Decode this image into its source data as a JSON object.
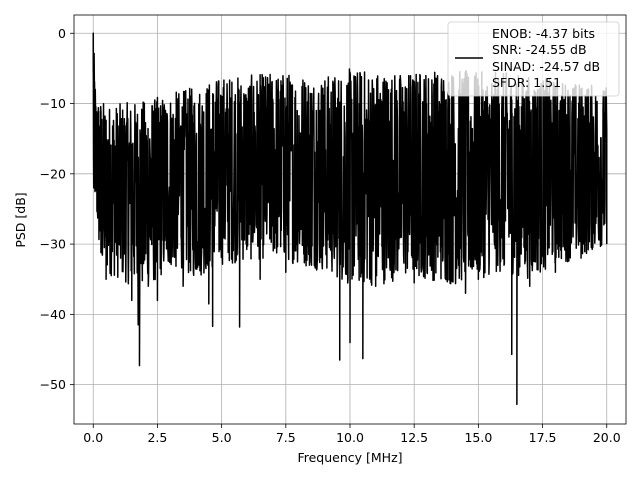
{
  "chart_data": {
    "type": "line",
    "xlabel": "Frequency [MHz]",
    "ylabel": "PSD [dB]",
    "xlim": [
      -0.75,
      20.75
    ],
    "ylim": [
      -55.6,
      2.6
    ],
    "xticks": [
      0.0,
      2.5,
      5.0,
      7.5,
      10.0,
      12.5,
      15.0,
      17.5,
      20.0
    ],
    "xtick_labels": [
      "0.0",
      "2.5",
      "5.0",
      "7.5",
      "10.0",
      "12.5",
      "15.0",
      "17.5",
      "20.0"
    ],
    "yticks": [
      0,
      -10,
      -20,
      -30,
      -40,
      -50
    ],
    "ytick_labels": [
      "0",
      "−10",
      "−20",
      "−30",
      "−40",
      "−50"
    ],
    "grid": true,
    "legend": {
      "placement": "top-right",
      "lines": [
        "ENOB: -4.37 bits",
        "SNR: -24.55 dB",
        "SINAD: -24.57 dB",
        "SFDR: 1.51"
      ]
    },
    "series": [
      {
        "color": "#000000",
        "description_points": {
          "x": [
            0.0,
            0.02,
            0.05,
            0.1,
            0.2,
            0.3,
            0.5,
            1.0,
            1.5,
            1.75,
            1.8,
            2.5,
            3.5,
            4.5,
            4.65,
            5.0,
            5.7,
            6.5,
            7.5,
            8.5,
            9.5,
            9.6,
            10.0,
            10.5,
            11.0,
            12.5,
            13.0,
            14.5,
            15.0,
            16.0,
            16.3,
            16.5,
            17.0,
            18.0,
            19.0,
            20.0
          ],
          "y": [
            0.0,
            -22.0,
            -6.9,
            -12.0,
            -24.0,
            -31.2,
            -35.0,
            -30.0,
            -38.0,
            -41.5,
            -47.3,
            -38.0,
            -36.0,
            -38.5,
            -41.7,
            -30.0,
            -41.8,
            -35.0,
            -34.0,
            -33.0,
            -32.0,
            -46.5,
            -44.0,
            -46.3,
            -36.0,
            -35.5,
            -34.0,
            -37.0,
            -35.0,
            -33.0,
            -45.7,
            -52.8,
            -36.0,
            -34.0,
            -32.0,
            -30.0
          ]
        },
        "upper_envelope": {
          "x": [
            0.0,
            0.1,
            0.5,
            1.0,
            2.0,
            3.0,
            4.0,
            5.0,
            6.0,
            7.0,
            8.0,
            9.0,
            10.0,
            11.0,
            12.0,
            13.0,
            14.0,
            15.0,
            16.0,
            17.0,
            18.0,
            19.0,
            20.0
          ],
          "y": [
            0.0,
            -8.5,
            -10.0,
            -10.0,
            -9.5,
            -8.5,
            -7.5,
            -6.0,
            -6.0,
            -5.5,
            -5.5,
            -6.0,
            -5.0,
            -5.0,
            -5.5,
            -5.0,
            -5.0,
            -5.5,
            -5.5,
            -6.0,
            -6.5,
            -7.0,
            -7.5
          ]
        },
        "lower_envelope": {
          "x": [
            0.0,
            0.3,
            1.0,
            2.0,
            3.0,
            4.0,
            5.0,
            6.0,
            7.0,
            8.0,
            9.0,
            10.0,
            11.0,
            12.0,
            13.0,
            14.0,
            15.0,
            16.0,
            17.0,
            18.0,
            19.0,
            20.0
          ],
          "y": [
            -22.0,
            -34.0,
            -35.0,
            -37.0,
            -33.5,
            -35.0,
            -33.0,
            -32.5,
            -32.0,
            -33.0,
            -34.0,
            -36.0,
            -36.0,
            -35.0,
            -35.0,
            -36.0,
            -35.0,
            -34.0,
            -35.0,
            -33.0,
            -32.0,
            -30.0
          ]
        }
      }
    ]
  }
}
